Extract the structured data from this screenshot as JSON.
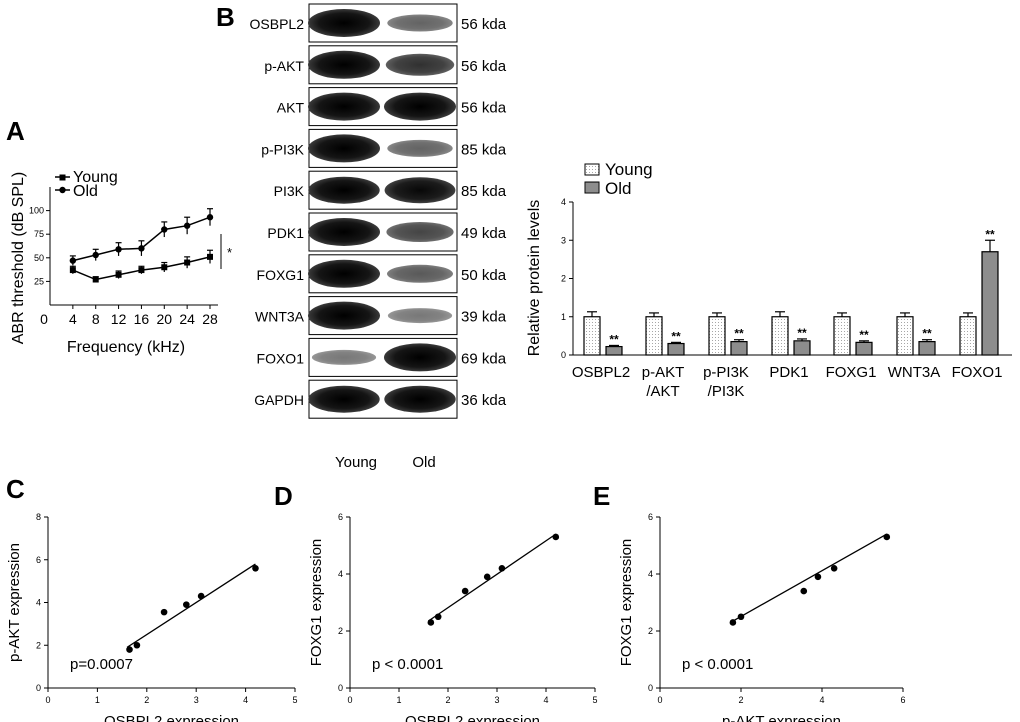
{
  "panels": {
    "A": "A",
    "B": "B",
    "C": "C",
    "D": "D",
    "E": "E"
  },
  "colors": {
    "ink": "#000000",
    "band": "#0a0a0a",
    "blot_bg": "#ffffff",
    "old_bar": "#b5b5b5"
  },
  "chart_data": [
    {
      "id": "A",
      "type": "line",
      "title": "",
      "xlabel": "Frequency (kHz)",
      "ylabel": "ABR threshold (dB SPL)",
      "x": [
        4,
        8,
        12,
        16,
        20,
        24,
        28
      ],
      "xticks": [
        "0",
        "4",
        "8",
        "12",
        "16",
        "20",
        "24",
        "28"
      ],
      "yticks": [
        "25",
        "50",
        "75",
        "100"
      ],
      "xlim": [
        0,
        28
      ],
      "ylim": [
        0,
        125
      ],
      "series": [
        {
          "name": "Young",
          "marker": "square",
          "values": [
            37,
            27,
            32,
            37,
            40,
            45,
            51
          ],
          "err": [
            4,
            3,
            4,
            4,
            5,
            6,
            7
          ]
        },
        {
          "name": "Old",
          "marker": "circle",
          "values": [
            47,
            53,
            59,
            60,
            80,
            84,
            93
          ],
          "err": [
            5,
            6,
            7,
            8,
            8,
            9,
            9
          ]
        }
      ],
      "annotation": "*",
      "legend_position": "top-left"
    },
    {
      "id": "B",
      "type": "bar",
      "ylabel": "Relative protein levels",
      "categories": [
        [
          "OSBPL2"
        ],
        [
          "p-AKT",
          "/AKT"
        ],
        [
          "p-PI3K",
          "/PI3K"
        ],
        [
          "PDK1"
        ],
        [
          "FOXG1"
        ],
        [
          "WNT3A"
        ],
        [
          "FOXO1"
        ]
      ],
      "series": [
        {
          "name": "Young",
          "values": [
            1,
            1,
            1,
            1,
            1,
            1,
            1
          ],
          "err": [
            0.13,
            0.1,
            0.1,
            0.13,
            0.1,
            0.1,
            0.1
          ]
        },
        {
          "name": "Old",
          "values": [
            0.22,
            0.3,
            0.35,
            0.37,
            0.33,
            0.35,
            2.7
          ],
          "err": [
            0.03,
            0.03,
            0.05,
            0.05,
            0.04,
            0.05,
            0.3
          ]
        }
      ],
      "significance": [
        "**",
        "**",
        "**",
        "**",
        "**",
        "**",
        "**"
      ],
      "yticks": [
        "0",
        "1",
        "2",
        "3",
        "4"
      ],
      "ylim": [
        0,
        4
      ],
      "legend_position": "top-left"
    },
    {
      "id": "C",
      "type": "scatter",
      "xlabel": "OSBPL2 expression",
      "ylabel": "p-AKT expression",
      "x": [
        1.65,
        1.8,
        2.35,
        2.8,
        3.1,
        4.2
      ],
      "y": [
        1.8,
        2.0,
        3.55,
        3.9,
        4.3,
        5.6
      ],
      "fit": {
        "x": [
          1.6,
          4.2
        ],
        "y": [
          1.9,
          5.8
        ]
      },
      "xlim": [
        0,
        5
      ],
      "ylim": [
        0,
        8
      ],
      "xticks": [
        "0",
        "1",
        "2",
        "3",
        "4",
        "5"
      ],
      "yticks": [
        "0",
        "2",
        "4",
        "6",
        "8"
      ],
      "annotation": "p=0.0007"
    },
    {
      "id": "D",
      "type": "scatter",
      "xlabel": "OSBPL2 expression",
      "ylabel": "FOXG1 expression",
      "x": [
        1.65,
        1.8,
        2.35,
        2.8,
        3.1,
        4.2
      ],
      "y": [
        2.3,
        2.5,
        3.4,
        3.9,
        4.2,
        5.3
      ],
      "fit": {
        "x": [
          1.6,
          4.2
        ],
        "y": [
          2.35,
          5.4
        ]
      },
      "xlim": [
        0,
        5
      ],
      "ylim": [
        0,
        6
      ],
      "xticks": [
        "0",
        "1",
        "2",
        "3",
        "4",
        "5"
      ],
      "yticks": [
        "0",
        "2",
        "4",
        "6"
      ],
      "annotation": "p < 0.0001"
    },
    {
      "id": "E",
      "type": "scatter",
      "xlabel": "p-AKT expression",
      "ylabel": "FOXG1 expression",
      "x": [
        1.8,
        2.0,
        3.55,
        3.9,
        4.3,
        5.6
      ],
      "y": [
        2.3,
        2.5,
        3.4,
        3.9,
        4.2,
        5.3
      ],
      "fit": {
        "x": [
          1.8,
          5.6
        ],
        "y": [
          2.35,
          5.4
        ]
      },
      "xlim": [
        0,
        6
      ],
      "ylim": [
        0,
        6
      ],
      "xticks": [
        "0",
        "2",
        "4",
        "6"
      ],
      "yticks": [
        "0",
        "2",
        "4",
        "6"
      ],
      "annotation": "p < 0.0001"
    }
  ],
  "blot": {
    "rows": [
      {
        "label": "OSBPL2",
        "kda": "56 kda",
        "young": 1.0,
        "old": 0.45
      },
      {
        "label": "p-AKT",
        "kda": "56 kda",
        "young": 1.0,
        "old": 0.7
      },
      {
        "label": "AKT",
        "kda": "56 kda",
        "young": 1.0,
        "old": 1.0
      },
      {
        "label": "p-PI3K",
        "kda": "85 kda",
        "young": 1.0,
        "old": 0.45
      },
      {
        "label": "PI3K",
        "kda": "85 kda",
        "young": 0.95,
        "old": 0.9
      },
      {
        "label": "PDK1",
        "kda": "49 kda",
        "young": 1.0,
        "old": 0.6
      },
      {
        "label": "FOXG1",
        "kda": "50 kda",
        "young": 1.0,
        "old": 0.5
      },
      {
        "label": "WNT3A",
        "kda": "39 kda",
        "young": 1.0,
        "old": 0.35
      },
      {
        "label": "FOXO1",
        "kda": "69 kda",
        "young": 0.35,
        "old": 1.0
      },
      {
        "label": "GAPDH",
        "kda": "36 kda",
        "young": 0.95,
        "old": 0.95
      }
    ],
    "lanes": [
      "Young",
      "Old"
    ]
  }
}
